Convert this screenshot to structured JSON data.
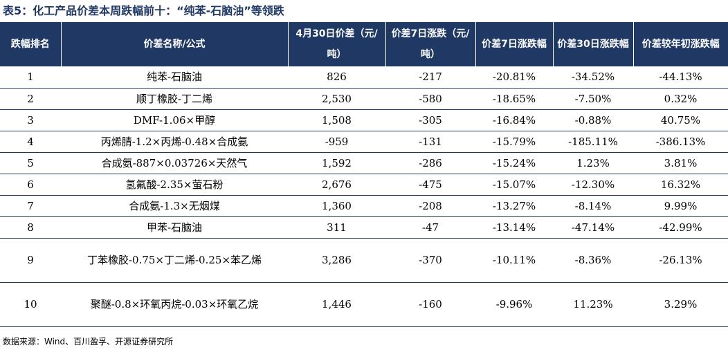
{
  "caption": "表5：化工产品价差本周跌幅前十：“纯苯-石脑油”等领跌",
  "source": "数据来源：Wind、百川盈孚、开源证券研究所",
  "headers": [
    "跌幅排名",
    "价差名称/公式",
    "4月30日价差（元/吨）",
    "价差7日涨跌（元/吨）",
    "价差7日涨跌幅",
    "价差30日涨跌幅",
    "价差较年初涨跌幅"
  ],
  "rows": [
    [
      "1",
      "纯苯-石脑油",
      "826",
      "-217",
      "-20.81%",
      "-34.52%",
      "-44.13%"
    ],
    [
      "2",
      "顺丁橡胶-丁二烯",
      "2,530",
      "-580",
      "-18.65%",
      "-7.50%",
      "0.32%"
    ],
    [
      "3",
      "DMF-1.06×甲醇",
      "1,508",
      "-305",
      "-16.84%",
      "-0.88%",
      "40.75%"
    ],
    [
      "4",
      "丙烯腈-1.2×丙烯-0.48×合成氨",
      "-959",
      "-131",
      "-15.79%",
      "-185.11%",
      "-386.13%"
    ],
    [
      "5",
      "合成氨-887×0.03726×天然气",
      "1,592",
      "-286",
      "-15.24%",
      "1.23%",
      "3.81%"
    ],
    [
      "6",
      "氢氟酸-2.35×萤石粉",
      "2,676",
      "-475",
      "-15.07%",
      "-12.30%",
      "16.32%"
    ],
    [
      "7",
      "合成氨-1.3×无烟煤",
      "1,360",
      "-208",
      "-13.27%",
      "-8.14%",
      "9.99%"
    ],
    [
      "8",
      "甲苯-石脑油",
      "311",
      "-47",
      "-13.14%",
      "-47.14%",
      "-42.99%"
    ],
    [
      "9",
      "丁苯橡胶-0.75×丁二烯-0.25×苯乙烯",
      "3,286",
      "-370",
      "-10.11%",
      "-8.36%",
      "-26.13%"
    ],
    [
      "10",
      "聚醚-0.8×环氧丙烷-0.03×环氧乙烷",
      "1,446",
      "-160",
      "-9.96%",
      "11.23%",
      "3.29%"
    ]
  ],
  "colors": {
    "header_bg": "#1f3864",
    "caption": "#1f3864",
    "rule": "#1f3864"
  }
}
